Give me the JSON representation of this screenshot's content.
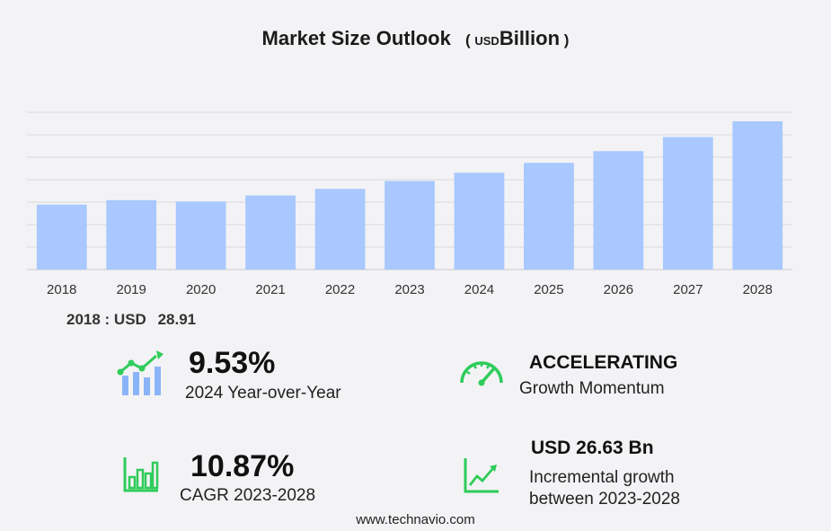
{
  "title": {
    "main": "Market Size Outlook",
    "open_paren": "(",
    "unit_currency": "USD",
    "unit_scale": "Billion",
    "close_paren": ")"
  },
  "chart_data": {
    "type": "bar",
    "title": "Market Size Outlook ( USD Billion )",
    "categories": [
      "2018",
      "2019",
      "2020",
      "2021",
      "2022",
      "2023",
      "2024",
      "2025",
      "2026",
      "2027",
      "2028"
    ],
    "values": [
      28.91,
      30.9,
      30.3,
      33.0,
      35.9,
      39.4,
      43.1,
      47.5,
      52.7,
      59.0,
      66.0
    ],
    "ylim": [
      0,
      70
    ],
    "grid": true,
    "bar_color": "#a8c8ff",
    "grid_color": "#d8d8dc"
  },
  "base_year": {
    "label": "2018 : USD",
    "value": "28.91"
  },
  "kpis": {
    "yoy": {
      "value": "9.53%",
      "label": "2024 Year-over-Year",
      "icon": "bar-growth-icon"
    },
    "momentum": {
      "value": "ACCELERATING",
      "label": "Growth Momentum",
      "icon": "speedometer-icon"
    },
    "cagr": {
      "value": "10.87%",
      "label": "CAGR 2023-2028",
      "icon": "bar-chart-icon"
    },
    "incremental": {
      "value": "USD 26.63 Bn",
      "label_line1": "Incremental growth",
      "label_line2": "between 2023-2028",
      "icon": "trend-line-icon"
    }
  },
  "colors": {
    "accent": "#2ecc5a",
    "bar": "#a8c8ff",
    "bar_icon": "#8ab4f8"
  },
  "footer": "www.technavio.com"
}
